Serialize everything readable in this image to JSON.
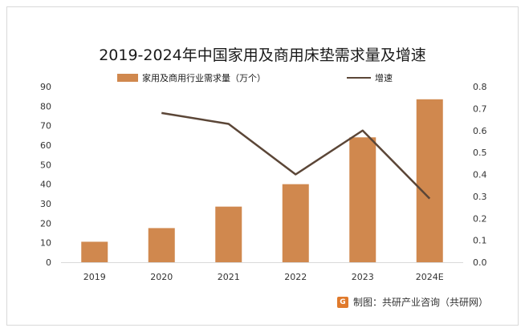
{
  "source": "制图：共研产业咨询（共研网）",
  "chart_data": {
    "type": "bar+line",
    "title": "2019-2024年中国家用及商用床垫需求量及增速",
    "categories": [
      "2019",
      "2020",
      "2021",
      "2022",
      "2023",
      "2024E"
    ],
    "series": [
      {
        "name": "家用及商用行业需求量（万个）",
        "type": "bar",
        "axis": "left",
        "color": "#d0884e",
        "values": [
          10.5,
          17.5,
          28.5,
          40,
          64,
          83.5
        ]
      },
      {
        "name": "增速",
        "type": "line",
        "axis": "right",
        "color": "#5b4637",
        "values": [
          null,
          0.68,
          0.63,
          0.4,
          0.6,
          0.29
        ]
      }
    ],
    "y_left": {
      "min": 0,
      "max": 90,
      "step": 10,
      "ticks": [
        "0",
        "10",
        "20",
        "30",
        "40",
        "50",
        "60",
        "70",
        "80",
        "90"
      ]
    },
    "y_right": {
      "min": 0,
      "max": 0.8,
      "step": 0.1,
      "ticks": [
        "0.0",
        "0.1",
        "0.2",
        "0.3",
        "0.4",
        "0.5",
        "0.6",
        "0.7",
        "0.8"
      ]
    },
    "grid": false,
    "legend_position": "top"
  }
}
